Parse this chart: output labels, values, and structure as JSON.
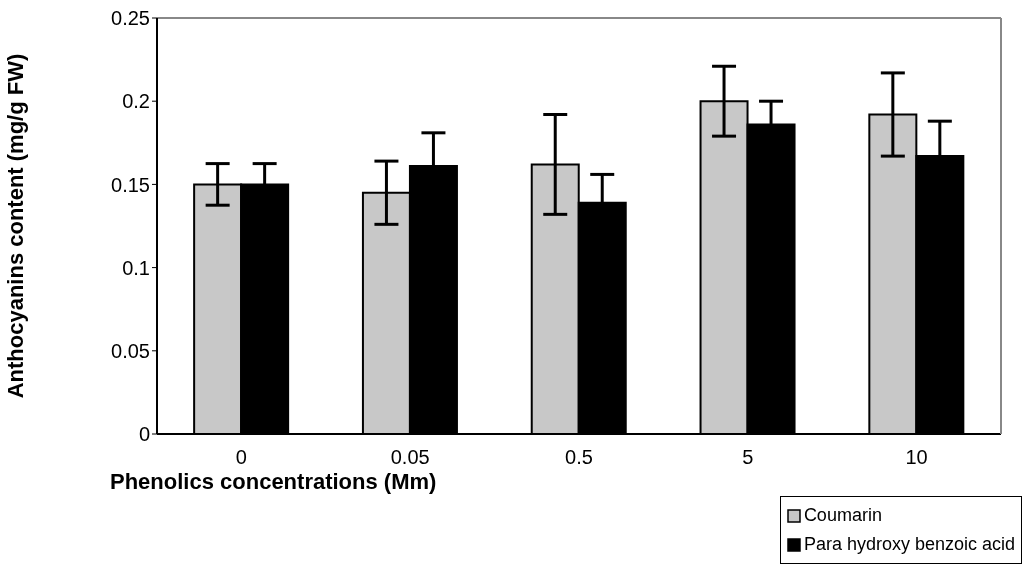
{
  "chart_data": {
    "type": "bar",
    "xlabel": "Phenolics concentrations (Mm)",
    "ylabel": "Anthocyanins content (mg/g FW)",
    "categories": [
      "0",
      "0.05",
      "0.5",
      "5",
      "10"
    ],
    "series": [
      {
        "name": "Coumarin",
        "color": "#c8c8c8",
        "values": [
          0.15,
          0.145,
          0.162,
          0.2,
          0.192
        ],
        "errors": [
          0.0125,
          0.019,
          0.03,
          0.021,
          0.025
        ]
      },
      {
        "name": "Para hydroxy benzoic acid",
        "color": "#000000",
        "values": [
          0.15,
          0.161,
          0.139,
          0.186,
          0.167
        ],
        "errors": [
          0.0125,
          0.02,
          0.017,
          0.014,
          0.021
        ]
      }
    ],
    "ylim": [
      0,
      0.25
    ],
    "yticks": [
      0,
      0.05,
      0.1,
      0.15,
      0.2,
      0.25
    ],
    "legend": "bottom right"
  }
}
